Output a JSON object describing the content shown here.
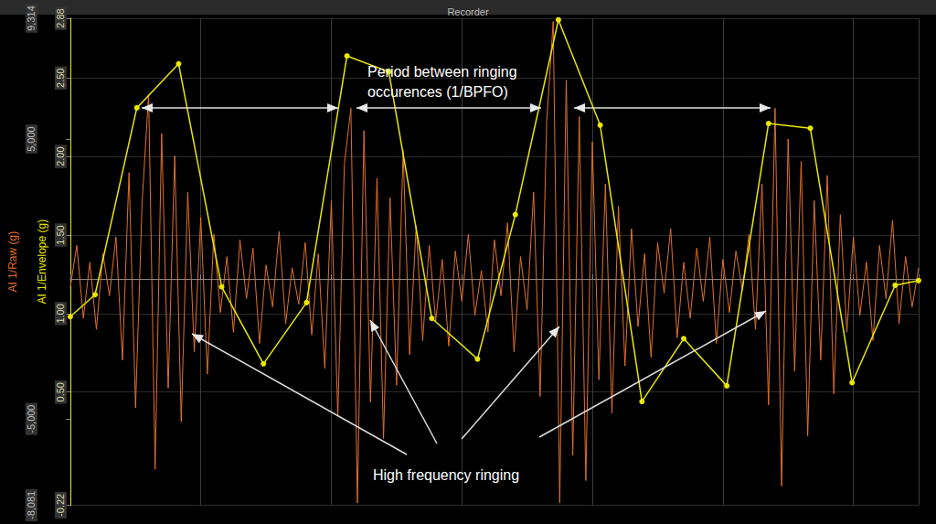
{
  "chart_data": {
    "type": "line",
    "title": "Recorder",
    "ylabel": "AI 1/Raw (g)",
    "y2label": "AI 1/Envelope (g)",
    "xlim": [
      0,
      6.5
    ],
    "xticks": [
      0,
      1,
      2,
      3,
      4,
      5,
      6
    ],
    "ylim": [
      -8.081,
      9.314
    ],
    "yticks": [
      {
        "value": -8.081,
        "label": "-8,081"
      },
      {
        "value": -5,
        "label": "-5,000"
      },
      {
        "value": 5,
        "label": "5,000"
      },
      {
        "value": 9.314,
        "label": "9,314"
      }
    ],
    "y2lim": [
      -0.22,
      2.88
    ],
    "y2ticks": [
      {
        "value": -0.22,
        "label": "-0.22"
      },
      {
        "value": 0.5,
        "label": "0.50"
      },
      {
        "value": 1,
        "label": "1.00"
      },
      {
        "value": 1.5,
        "label": "1.50"
      },
      {
        "value": 2,
        "label": "2.00"
      },
      {
        "value": 2.5,
        "label": "2.50"
      },
      {
        "value": 2.88,
        "label": "2.88"
      }
    ],
    "grid": true,
    "tick_labels": "y",
    "annotations": [
      {
        "text": "Period between ringing occurences (1/BPFO)"
      },
      {
        "text": "High frequency ringing"
      }
    ],
    "series": [
      {
        "name": "AI 1/Raw",
        "color": "#e0702c",
        "axis": "y",
        "line_style": "solid",
        "x": [
          0,
          0.05,
          0.1,
          0.15,
          0.2,
          0.25,
          0.3,
          0.35,
          0.4,
          0.45,
          0.5,
          0.55,
          0.6,
          0.65,
          0.7,
          0.75,
          0.8,
          0.85,
          0.9,
          0.95,
          1,
          1.05,
          1.1,
          1.15,
          1.2,
          1.25,
          1.3,
          1.35,
          1.4,
          1.45,
          1.5,
          1.55,
          1.6,
          1.65,
          1.7,
          1.75,
          1.8,
          1.85,
          1.9,
          1.95,
          2,
          2.05,
          2.1,
          2.15,
          2.2,
          2.25,
          2.3,
          2.35,
          2.4,
          2.45,
          2.5,
          2.55,
          2.6,
          2.65,
          2.7,
          2.75,
          2.8,
          2.85,
          2.9,
          2.95,
          3,
          3.05,
          3.1,
          3.15,
          3.2,
          3.25,
          3.3,
          3.35,
          3.4,
          3.45,
          3.5,
          3.55,
          3.6,
          3.65,
          3.7,
          3.75,
          3.8,
          3.85,
          3.9,
          3.95,
          4,
          4.05,
          4.1,
          4.15,
          4.2,
          4.25,
          4.3,
          4.35,
          4.4,
          4.45,
          4.5,
          4.55,
          4.6,
          4.65,
          4.7,
          4.75,
          4.8,
          4.85,
          4.9,
          4.95,
          5,
          5.05,
          5.1,
          5.15,
          5.2,
          5.25,
          5.3,
          5.35,
          5.4,
          5.45,
          5.5,
          5.55,
          5.6,
          5.65,
          5.7,
          5.75,
          5.8,
          5.85,
          5.9,
          5.95,
          6,
          6.05,
          6.1,
          6.15,
          6.2,
          6.25,
          6.3,
          6.35,
          6.4,
          6.45,
          6.5
        ],
        "values": [
          -0.3,
          1.2,
          -1.4,
          0.6,
          -1.8,
          0.9,
          -0.6,
          1.5,
          -2.9,
          3.8,
          -4.6,
          2.7,
          6.6,
          -6.8,
          5.2,
          -3.9,
          4.4,
          -5.1,
          3.1,
          -2.6,
          2.2,
          -3.4,
          1.6,
          -1.2,
          0.8,
          -1.9,
          1.4,
          -0.7,
          1.1,
          -2.3,
          0.5,
          -1.0,
          1.7,
          -1.6,
          0.4,
          -0.9,
          1.3,
          -2.0,
          0.9,
          -3.2,
          2.8,
          -4.9,
          4.1,
          6.1,
          -8.0,
          5.3,
          -4.4,
          3.6,
          -5.7,
          2.9,
          -3.8,
          4.6,
          -2.7,
          1.9,
          -2.2,
          1.2,
          -1.5,
          0.7,
          -2.4,
          1.0,
          -0.8,
          1.6,
          -1.3,
          0.3,
          -1.9,
          1.4,
          -0.6,
          2.0,
          -2.6,
          0.8,
          -1.1,
          3.1,
          -4.2,
          5.6,
          9.2,
          -8.0,
          7.1,
          -6.3,
          5.8,
          -7.2,
          4.9,
          -3.6,
          3.4,
          -4.8,
          2.6,
          -3.1,
          1.8,
          -1.7,
          0.9,
          -2.8,
          1.3,
          -0.5,
          1.8,
          -2.1,
          0.6,
          -1.4,
          1.1,
          -0.8,
          1.5,
          -2.3,
          0.7,
          -1.2,
          1.0,
          -0.4,
          1.6,
          -1.8,
          3.4,
          -4.5,
          6.1,
          -7.4,
          5.0,
          -3.3,
          4.2,
          -5.6,
          2.8,
          -2.9,
          3.7,
          -4.1,
          2.3,
          -1.9,
          1.5,
          -1.3,
          0.6,
          -2.2,
          1.2,
          -0.7,
          2.1,
          -1.6,
          0.8,
          -1.0,
          0.4
        ]
      },
      {
        "name": "AI 1/Envelope",
        "color": "#e8e800",
        "axis": "y2",
        "marker": "circle",
        "line_style": "solid",
        "x": [
          0,
          0.19,
          0.51,
          0.83,
          1.16,
          1.48,
          1.81,
          2.12,
          2.44,
          2.77,
          3.12,
          3.41,
          3.74,
          4.06,
          4.38,
          4.7,
          5.03,
          5.35,
          5.67,
          5.99,
          6.32,
          6.5
        ],
        "values": [
          0.98,
          1.12,
          2.31,
          2.59,
          1.17,
          0.68,
          1.07,
          2.64,
          2.54,
          0.97,
          0.71,
          1.63,
          2.87,
          2.2,
          0.44,
          0.84,
          0.54,
          2.21,
          2.18,
          0.56,
          1.18,
          1.21
        ]
      }
    ]
  }
}
